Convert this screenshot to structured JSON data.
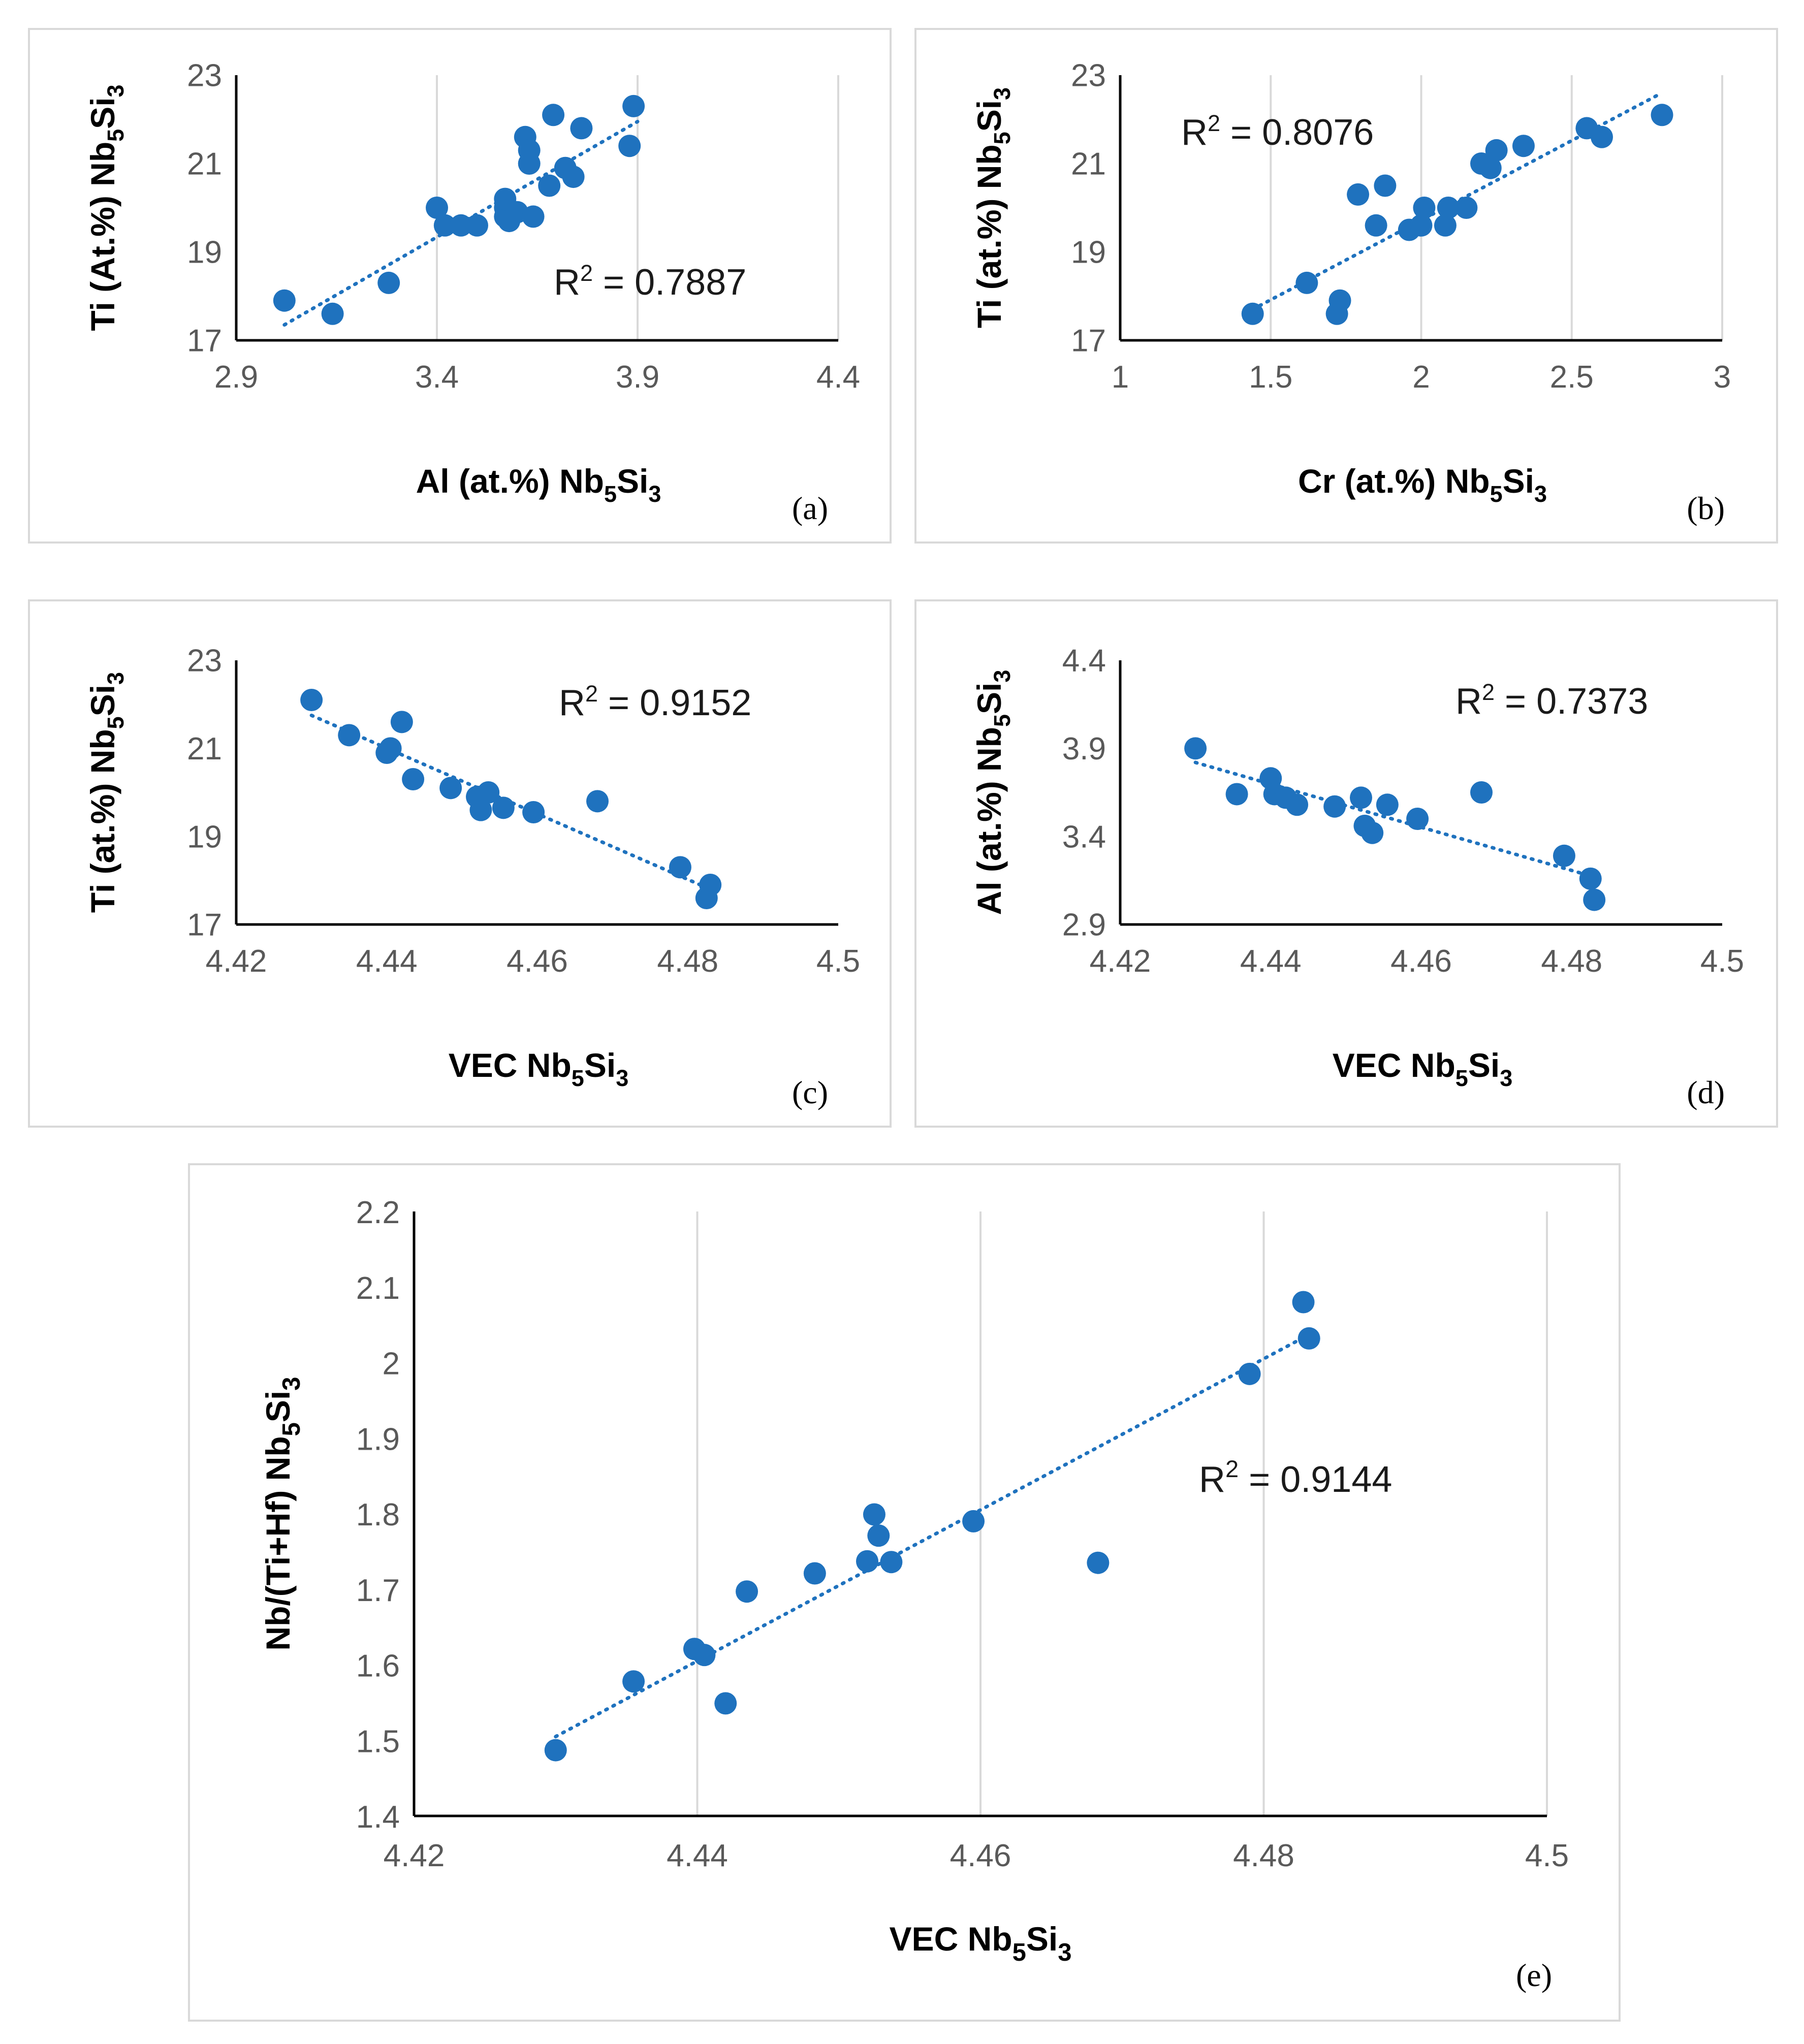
{
  "colors": {
    "marker": "#1f72be",
    "trend": "#1f72be",
    "axis": "#000000",
    "grid": "#d9d9d9",
    "tick_text": "#595959"
  },
  "chart_data": [
    {
      "id": "a",
      "type": "scatter",
      "panel_label": "(a)",
      "xlabel": {
        "main": "Al (at.%) Nb",
        "sub1": "5",
        "mid": "Si",
        "sub2": "3"
      },
      "ylabel": {
        "main": "Ti (At.%) Nb",
        "sub1": "5",
        "mid": "Si",
        "sub2": "3"
      },
      "xlim": [
        2.9,
        4.4
      ],
      "ylim": [
        17,
        23
      ],
      "xticks": [
        "2.9",
        "3.4",
        "3.9",
        "4.4"
      ],
      "yticks": [
        "17",
        "19",
        "21",
        "23"
      ],
      "grid": "vertical",
      "r2": {
        "prefix": "R",
        "sup": "2",
        "value": " = 0.7887"
      },
      "trend": [
        [
          3.02,
          17.35
        ],
        [
          3.9,
          21.95
        ]
      ],
      "points": [
        [
          3.02,
          17.9
        ],
        [
          3.14,
          17.6
        ],
        [
          3.28,
          18.3
        ],
        [
          3.4,
          20.0
        ],
        [
          3.42,
          19.6
        ],
        [
          3.46,
          19.6
        ],
        [
          3.5,
          19.6
        ],
        [
          3.57,
          19.8
        ],
        [
          3.57,
          20.0
        ],
        [
          3.57,
          20.2
        ],
        [
          3.58,
          19.7
        ],
        [
          3.6,
          19.9
        ],
        [
          3.62,
          21.6
        ],
        [
          3.63,
          21.3
        ],
        [
          3.63,
          21.0
        ],
        [
          3.64,
          19.8
        ],
        [
          3.68,
          20.5
        ],
        [
          3.69,
          22.1
        ],
        [
          3.72,
          20.9
        ],
        [
          3.74,
          20.7
        ],
        [
          3.76,
          21.8
        ],
        [
          3.88,
          21.4
        ],
        [
          3.89,
          22.3
        ]
      ]
    },
    {
      "id": "b",
      "type": "scatter",
      "panel_label": "(b)",
      "xlabel": {
        "main": "Cr (at.%) Nb",
        "sub1": "5",
        "mid": "Si",
        "sub2": "3"
      },
      "ylabel": {
        "main": "Ti (at.%) Nb",
        "sub1": "5",
        "mid": "Si",
        "sub2": "3"
      },
      "xlim": [
        1,
        3
      ],
      "ylim": [
        17,
        23
      ],
      "xticks": [
        "1",
        "1.5",
        "2",
        "2.5",
        "3"
      ],
      "yticks": [
        "17",
        "19",
        "21",
        "23"
      ],
      "grid": "vertical",
      "r2": {
        "prefix": "R",
        "sup": "2",
        "value": " = 0.8076"
      },
      "trend": [
        [
          1.44,
          17.7
        ],
        [
          2.8,
          22.6
        ]
      ],
      "points": [
        [
          1.44,
          17.6
        ],
        [
          1.62,
          18.3
        ],
        [
          1.72,
          17.6
        ],
        [
          1.73,
          17.9
        ],
        [
          1.79,
          20.3
        ],
        [
          1.85,
          19.6
        ],
        [
          1.88,
          20.5
        ],
        [
          1.96,
          19.5
        ],
        [
          2.0,
          19.6
        ],
        [
          2.01,
          20.0
        ],
        [
          2.08,
          19.6
        ],
        [
          2.09,
          20.0
        ],
        [
          2.15,
          20.0
        ],
        [
          2.2,
          21.0
        ],
        [
          2.23,
          20.9
        ],
        [
          2.25,
          21.3
        ],
        [
          2.34,
          21.4
        ],
        [
          2.55,
          21.8
        ],
        [
          2.6,
          21.6
        ],
        [
          2.8,
          22.1
        ]
      ]
    },
    {
      "id": "c",
      "type": "scatter",
      "panel_label": "(c)",
      "xlabel": {
        "main": "VEC Nb",
        "sub1": "5",
        "mid": "Si",
        "sub2": "3"
      },
      "ylabel": {
        "main": "Ti (at.%) Nb",
        "sub1": "5",
        "mid": "Si",
        "sub2": "3"
      },
      "xlim": [
        4.42,
        4.5
      ],
      "ylim": [
        17,
        23
      ],
      "xticks": [
        "4.42",
        "4.44",
        "4.46",
        "4.48",
        "4.5"
      ],
      "yticks": [
        "17",
        "19",
        "21",
        "23"
      ],
      "grid": "none",
      "r2": {
        "prefix": "R",
        "sup": "2",
        "value": " = 0.9152"
      },
      "trend": [
        [
          4.43,
          21.75
        ],
        [
          4.483,
          17.8
        ]
      ],
      "points": [
        [
          4.43,
          22.1
        ],
        [
          4.435,
          21.3
        ],
        [
          4.44,
          20.9
        ],
        [
          4.4405,
          21.0
        ],
        [
          4.442,
          21.6
        ],
        [
          4.4435,
          20.3
        ],
        [
          4.4485,
          20.1
        ],
        [
          4.452,
          19.9
        ],
        [
          4.4525,
          19.6
        ],
        [
          4.4535,
          20.0
        ],
        [
          4.4555,
          19.65
        ],
        [
          4.4595,
          19.55
        ],
        [
          4.468,
          19.8
        ],
        [
          4.479,
          18.3
        ],
        [
          4.4825,
          17.6
        ],
        [
          4.483,
          17.9
        ]
      ]
    },
    {
      "id": "d",
      "type": "scatter",
      "panel_label": "(d)",
      "xlabel": {
        "main": "VEC Nb",
        "sub1": "5",
        "mid": "Si",
        "sub2": "3"
      },
      "ylabel": {
        "main": "Al (at.%) Nb",
        "sub1": "5",
        "mid": "Si",
        "sub2": "3"
      },
      "xlim": [
        4.42,
        4.5
      ],
      "ylim": [
        2.9,
        4.4
      ],
      "xticks": [
        "4.42",
        "4.44",
        "4.46",
        "4.48",
        "4.5"
      ],
      "yticks": [
        "2.9",
        "3.4",
        "3.9",
        "4.4"
      ],
      "grid": "none",
      "r2": {
        "prefix": "R",
        "sup": "2",
        "value": " = 0.7373"
      },
      "trend": [
        [
          4.43,
          3.82
        ],
        [
          4.483,
          3.17
        ]
      ],
      "points": [
        [
          4.43,
          3.9
        ],
        [
          4.4355,
          3.64
        ],
        [
          4.44,
          3.73
        ],
        [
          4.4405,
          3.64
        ],
        [
          4.442,
          3.62
        ],
        [
          4.4435,
          3.58
        ],
        [
          4.4485,
          3.57
        ],
        [
          4.452,
          3.62
        ],
        [
          4.4525,
          3.46
        ],
        [
          4.4535,
          3.42
        ],
        [
          4.4555,
          3.58
        ],
        [
          4.4595,
          3.5
        ],
        [
          4.468,
          3.65
        ],
        [
          4.479,
          3.29
        ],
        [
          4.4825,
          3.16
        ],
        [
          4.483,
          3.04
        ]
      ]
    },
    {
      "id": "e",
      "type": "scatter",
      "panel_label": "(e)",
      "xlabel": {
        "main": "VEC Nb",
        "sub1": "5",
        "mid": "Si",
        "sub2": "3"
      },
      "ylabel": {
        "main": "Nb/(Ti+Hf) Nb",
        "sub1": "5",
        "mid": "Si",
        "sub2": "3"
      },
      "xlim": [
        4.42,
        4.5
      ],
      "ylim": [
        1.4,
        2.2
      ],
      "xticks": [
        "4.42",
        "4.44",
        "4.46",
        "4.48",
        "4.5"
      ],
      "yticks": [
        "1.4",
        "1.5",
        "1.6",
        "1.7",
        "1.8",
        "1.9",
        "2",
        "2.1",
        "2.2"
      ],
      "grid": "vertical",
      "r2": {
        "prefix": "R",
        "sup": "2",
        "value": " = 0.9144"
      },
      "trend": [
        [
          4.43,
          1.505
        ],
        [
          4.483,
          2.035
        ]
      ],
      "points": [
        [
          4.43,
          1.487
        ],
        [
          4.4355,
          1.578
        ],
        [
          4.4398,
          1.621
        ],
        [
          4.4405,
          1.613
        ],
        [
          4.442,
          1.549
        ],
        [
          4.4435,
          1.697
        ],
        [
          4.4483,
          1.721
        ],
        [
          4.452,
          1.737
        ],
        [
          4.4525,
          1.799
        ],
        [
          4.4528,
          1.771
        ],
        [
          4.4537,
          1.736
        ],
        [
          4.4595,
          1.79
        ],
        [
          4.4683,
          1.735
        ],
        [
          4.479,
          1.985
        ],
        [
          4.4828,
          2.08
        ],
        [
          4.4832,
          2.032
        ]
      ]
    }
  ]
}
